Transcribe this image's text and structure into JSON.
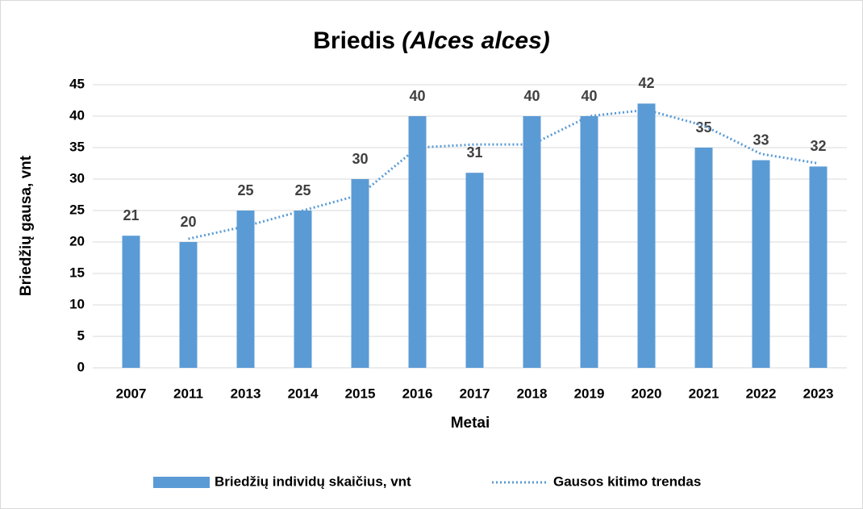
{
  "chart_data": {
    "type": "bar",
    "title": "Briedis",
    "title_species": "(Alces alces)",
    "x_label": "Metai",
    "y_label": "Briedžių gausa, vnt",
    "categories": [
      "2007",
      "2011",
      "2013",
      "2014",
      "2015",
      "2016",
      "2017",
      "2018",
      "2019",
      "2020",
      "2021",
      "2022",
      "2023"
    ],
    "series": [
      {
        "name": "Briedžių individų skaičius, vnt",
        "type": "bar",
        "color": "#5b9bd5",
        "values": [
          21,
          20,
          25,
          25,
          30,
          40,
          31,
          40,
          40,
          42,
          35,
          33,
          32
        ]
      },
      {
        "name": "Gausos kitimo trendas",
        "type": "line",
        "color": "#5b9bd5",
        "dotted": true,
        "values": [
          null,
          20.5,
          22.5,
          25,
          27.5,
          35,
          35.5,
          35.5,
          40,
          41,
          38.5,
          34,
          32.5
        ]
      }
    ],
    "ylim": [
      0,
      45
    ],
    "yticks": [
      0,
      5,
      10,
      15,
      20,
      25,
      30,
      35,
      40,
      45
    ],
    "grid": true,
    "legend": "bottom"
  }
}
